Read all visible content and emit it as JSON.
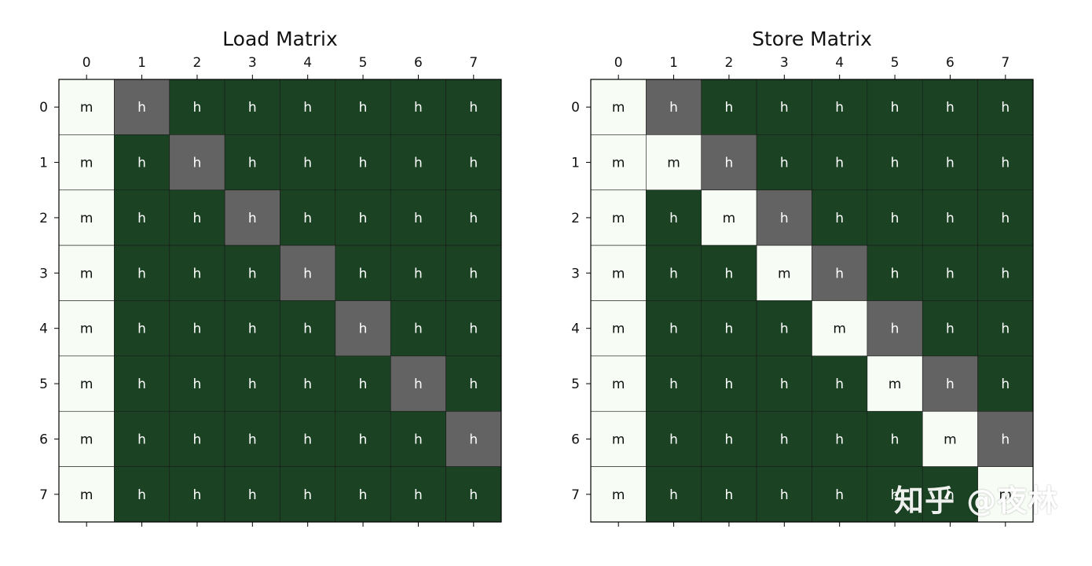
{
  "colors": {
    "miss": "#f7fcf5",
    "hit": "#1b4323",
    "diag": "#636363",
    "text_dark": "#111111",
    "text_light": "#ffffff"
  },
  "watermark": "知乎 @夜林",
  "chart_data": [
    {
      "type": "heatmap",
      "title": "Load Matrix",
      "x_ticks": [
        "0",
        "1",
        "2",
        "3",
        "4",
        "5",
        "6",
        "7"
      ],
      "y_ticks": [
        "0",
        "1",
        "2",
        "3",
        "4",
        "5",
        "6",
        "7"
      ],
      "cells": [
        [
          "m",
          "h",
          "h",
          "h",
          "h",
          "h",
          "h",
          "h"
        ],
        [
          "m",
          "h",
          "h",
          "h",
          "h",
          "h",
          "h",
          "h"
        ],
        [
          "m",
          "h",
          "h",
          "h",
          "h",
          "h",
          "h",
          "h"
        ],
        [
          "m",
          "h",
          "h",
          "h",
          "h",
          "h",
          "h",
          "h"
        ],
        [
          "m",
          "h",
          "h",
          "h",
          "h",
          "h",
          "h",
          "h"
        ],
        [
          "m",
          "h",
          "h",
          "h",
          "h",
          "h",
          "h",
          "h"
        ],
        [
          "m",
          "h",
          "h",
          "h",
          "h",
          "h",
          "h",
          "h"
        ],
        [
          "m",
          "h",
          "h",
          "h",
          "h",
          "h",
          "h",
          "h"
        ]
      ],
      "highlight_cells": [
        [
          0,
          1
        ],
        [
          1,
          2
        ],
        [
          2,
          3
        ],
        [
          3,
          4
        ],
        [
          4,
          5
        ],
        [
          5,
          6
        ],
        [
          6,
          7
        ]
      ]
    },
    {
      "type": "heatmap",
      "title": "Store Matrix",
      "x_ticks": [
        "0",
        "1",
        "2",
        "3",
        "4",
        "5",
        "6",
        "7"
      ],
      "y_ticks": [
        "0",
        "1",
        "2",
        "3",
        "4",
        "5",
        "6",
        "7"
      ],
      "cells": [
        [
          "m",
          "h",
          "h",
          "h",
          "h",
          "h",
          "h",
          "h"
        ],
        [
          "m",
          "m",
          "h",
          "h",
          "h",
          "h",
          "h",
          "h"
        ],
        [
          "m",
          "h",
          "m",
          "h",
          "h",
          "h",
          "h",
          "h"
        ],
        [
          "m",
          "h",
          "h",
          "m",
          "h",
          "h",
          "h",
          "h"
        ],
        [
          "m",
          "h",
          "h",
          "h",
          "m",
          "h",
          "h",
          "h"
        ],
        [
          "m",
          "h",
          "h",
          "h",
          "h",
          "m",
          "h",
          "h"
        ],
        [
          "m",
          "h",
          "h",
          "h",
          "h",
          "h",
          "m",
          "h"
        ],
        [
          "m",
          "h",
          "h",
          "h",
          "h",
          "h",
          "h",
          "m"
        ]
      ],
      "highlight_cells": [
        [
          0,
          1
        ],
        [
          1,
          2
        ],
        [
          2,
          3
        ],
        [
          3,
          4
        ],
        [
          4,
          5
        ],
        [
          5,
          6
        ],
        [
          6,
          7
        ]
      ]
    }
  ]
}
